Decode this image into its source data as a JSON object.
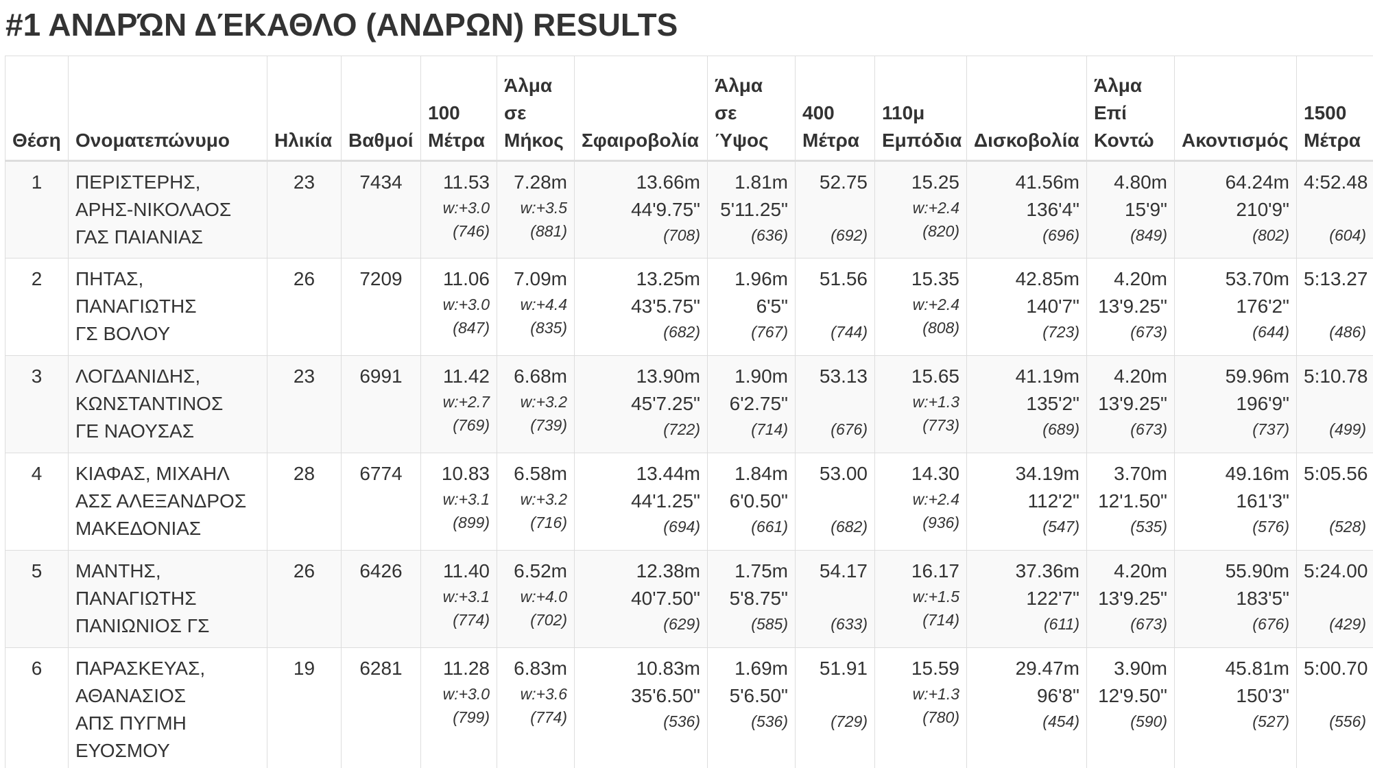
{
  "title": "#1 ΑΝΔΡΏΝ ΔΈΚΑΘΛΟ (ΑΝΔΡΩΝ) RESULTS",
  "headers": {
    "pos": "Θέση",
    "name": "Ονοματεπώνυμο",
    "age": "Ηλικία",
    "points": "Βαθμοί",
    "ev100": "100 Μέτρα",
    "lj": "Άλμα σε Μήκος",
    "sp": "Σφαιροβολία",
    "hj": "Άλμα σε Ύψος",
    "ev400": "400 Μέτρα",
    "hurdles": "110μ Εμπόδια",
    "dt": "Δισκοβολία",
    "pv": "Άλμα Επί Κοντώ",
    "jt": "Ακοντισμός",
    "ev1500": "1500 Μέτρα"
  },
  "rows": [
    {
      "pos": "1",
      "name": "ΠΕΡΙΣΤΕΡΗΣ, ΑΡΗΣ-ΝΙΚΟΛΑΟΣ",
      "club": "ΓΑΣ ΠΑΙΑΝΙΑΣ",
      "age": "23",
      "points": "7434",
      "ev100": {
        "mark": "11.53",
        "wind": "w:+3.0",
        "score": "(746)"
      },
      "lj": {
        "mark": "7.28m",
        "wind": "w:+3.5",
        "score": "(881)"
      },
      "sp": {
        "mark": "13.66m",
        "imp": "44'9.75\"",
        "score": "(708)"
      },
      "hj": {
        "mark": "1.81m",
        "imp": "5'11.25\"",
        "score": "(636)"
      },
      "ev400": {
        "mark": "52.75",
        "score": "(692)"
      },
      "hurdles": {
        "mark": "15.25",
        "wind": "w:+2.4",
        "score": "(820)"
      },
      "dt": {
        "mark": "41.56m",
        "imp": "136'4\"",
        "score": "(696)"
      },
      "pv": {
        "mark": "4.80m",
        "imp": "15'9\"",
        "score": "(849)"
      },
      "jt": {
        "mark": "64.24m",
        "imp": "210'9\"",
        "score": "(802)"
      },
      "ev1500": {
        "mark": "4:52.48",
        "score": "(604)"
      }
    },
    {
      "pos": "2",
      "name": "ΠΗΤΑΣ, ΠΑΝΑΓΙΩΤΗΣ",
      "club": "ΓΣ ΒΟΛΟΥ",
      "age": "26",
      "points": "7209",
      "ev100": {
        "mark": "11.06",
        "wind": "w:+3.0",
        "score": "(847)"
      },
      "lj": {
        "mark": "7.09m",
        "wind": "w:+4.4",
        "score": "(835)"
      },
      "sp": {
        "mark": "13.25m",
        "imp": "43'5.75\"",
        "score": "(682)"
      },
      "hj": {
        "mark": "1.96m",
        "imp": "6'5\"",
        "score": "(767)"
      },
      "ev400": {
        "mark": "51.56",
        "score": "(744)"
      },
      "hurdles": {
        "mark": "15.35",
        "wind": "w:+2.4",
        "score": "(808)"
      },
      "dt": {
        "mark": "42.85m",
        "imp": "140'7\"",
        "score": "(723)"
      },
      "pv": {
        "mark": "4.20m",
        "imp": "13'9.25\"",
        "score": "(673)"
      },
      "jt": {
        "mark": "53.70m",
        "imp": "176'2\"",
        "score": "(644)"
      },
      "ev1500": {
        "mark": "5:13.27",
        "score": "(486)"
      }
    },
    {
      "pos": "3",
      "name": "ΛΟΓΔΑΝΙΔΗΣ, ΚΩΝΣΤΑΝΤΙΝΟΣ",
      "club": "ΓΕ ΝΑΟΥΣΑΣ",
      "age": "23",
      "points": "6991",
      "ev100": {
        "mark": "11.42",
        "wind": "w:+2.7",
        "score": "(769)"
      },
      "lj": {
        "mark": "6.68m",
        "wind": "w:+3.2",
        "score": "(739)"
      },
      "sp": {
        "mark": "13.90m",
        "imp": "45'7.25\"",
        "score": "(722)"
      },
      "hj": {
        "mark": "1.90m",
        "imp": "6'2.75\"",
        "score": "(714)"
      },
      "ev400": {
        "mark": "53.13",
        "score": "(676)"
      },
      "hurdles": {
        "mark": "15.65",
        "wind": "w:+1.3",
        "score": "(773)"
      },
      "dt": {
        "mark": "41.19m",
        "imp": "135'2\"",
        "score": "(689)"
      },
      "pv": {
        "mark": "4.20m",
        "imp": "13'9.25\"",
        "score": "(673)"
      },
      "jt": {
        "mark": "59.96m",
        "imp": "196'9\"",
        "score": "(737)"
      },
      "ev1500": {
        "mark": "5:10.78",
        "score": "(499)"
      }
    },
    {
      "pos": "4",
      "name": "ΚΙΑΦΑΣ, ΜΙΧΑΗΛ",
      "club": "ΑΣΣ ΑΛΕΞΑΝΔΡΟΣ ΜΑΚΕΔΟΝΙΑΣ",
      "age": "28",
      "points": "6774",
      "ev100": {
        "mark": "10.83",
        "wind": "w:+3.1",
        "score": "(899)"
      },
      "lj": {
        "mark": "6.58m",
        "wind": "w:+3.2",
        "score": "(716)"
      },
      "sp": {
        "mark": "13.44m",
        "imp": "44'1.25\"",
        "score": "(694)"
      },
      "hj": {
        "mark": "1.84m",
        "imp": "6'0.50\"",
        "score": "(661)"
      },
      "ev400": {
        "mark": "53.00",
        "score": "(682)"
      },
      "hurdles": {
        "mark": "14.30",
        "wind": "w:+2.4",
        "score": "(936)"
      },
      "dt": {
        "mark": "34.19m",
        "imp": "112'2\"",
        "score": "(547)"
      },
      "pv": {
        "mark": "3.70m",
        "imp": "12'1.50\"",
        "score": "(535)"
      },
      "jt": {
        "mark": "49.16m",
        "imp": "161'3\"",
        "score": "(576)"
      },
      "ev1500": {
        "mark": "5:05.56",
        "score": "(528)"
      }
    },
    {
      "pos": "5",
      "name": "ΜΑΝΤΗΣ, ΠΑΝΑΓΙΩΤΗΣ",
      "club": "ΠΑΝΙΩΝΙΟΣ ΓΣ",
      "age": "26",
      "points": "6426",
      "ev100": {
        "mark": "11.40",
        "wind": "w:+3.1",
        "score": "(774)"
      },
      "lj": {
        "mark": "6.52m",
        "wind": "w:+4.0",
        "score": "(702)"
      },
      "sp": {
        "mark": "12.38m",
        "imp": "40'7.50\"",
        "score": "(629)"
      },
      "hj": {
        "mark": "1.75m",
        "imp": "5'8.75\"",
        "score": "(585)"
      },
      "ev400": {
        "mark": "54.17",
        "score": "(633)"
      },
      "hurdles": {
        "mark": "16.17",
        "wind": "w:+1.5",
        "score": "(714)"
      },
      "dt": {
        "mark": "37.36m",
        "imp": "122'7\"",
        "score": "(611)"
      },
      "pv": {
        "mark": "4.20m",
        "imp": "13'9.25\"",
        "score": "(673)"
      },
      "jt": {
        "mark": "55.90m",
        "imp": "183'5\"",
        "score": "(676)"
      },
      "ev1500": {
        "mark": "5:24.00",
        "score": "(429)"
      }
    },
    {
      "pos": "6",
      "name": "ΠΑΡΑΣΚΕΥΑΣ, ΑΘΑΝΑΣΙΟΣ",
      "club": "ΑΠΣ ΠΥΓΜΗ ΕΥΟΣΜΟΥ",
      "age": "19",
      "points": "6281",
      "ev100": {
        "mark": "11.28",
        "wind": "w:+3.0",
        "score": "(799)"
      },
      "lj": {
        "mark": "6.83m",
        "wind": "w:+3.6",
        "score": "(774)"
      },
      "sp": {
        "mark": "10.83m",
        "imp": "35'6.50\"",
        "score": "(536)"
      },
      "hj": {
        "mark": "1.69m",
        "imp": "5'6.50\"",
        "score": "(536)"
      },
      "ev400": {
        "mark": "51.91",
        "score": "(729)"
      },
      "hurdles": {
        "mark": "15.59",
        "wind": "w:+1.3",
        "score": "(780)"
      },
      "dt": {
        "mark": "29.47m",
        "imp": "96'8\"",
        "score": "(454)"
      },
      "pv": {
        "mark": "3.90m",
        "imp": "12'9.50\"",
        "score": "(590)"
      },
      "jt": {
        "mark": "45.81m",
        "imp": "150'3\"",
        "score": "(527)"
      },
      "ev1500": {
        "mark": "5:00.70",
        "score": "(556)"
      }
    }
  ]
}
